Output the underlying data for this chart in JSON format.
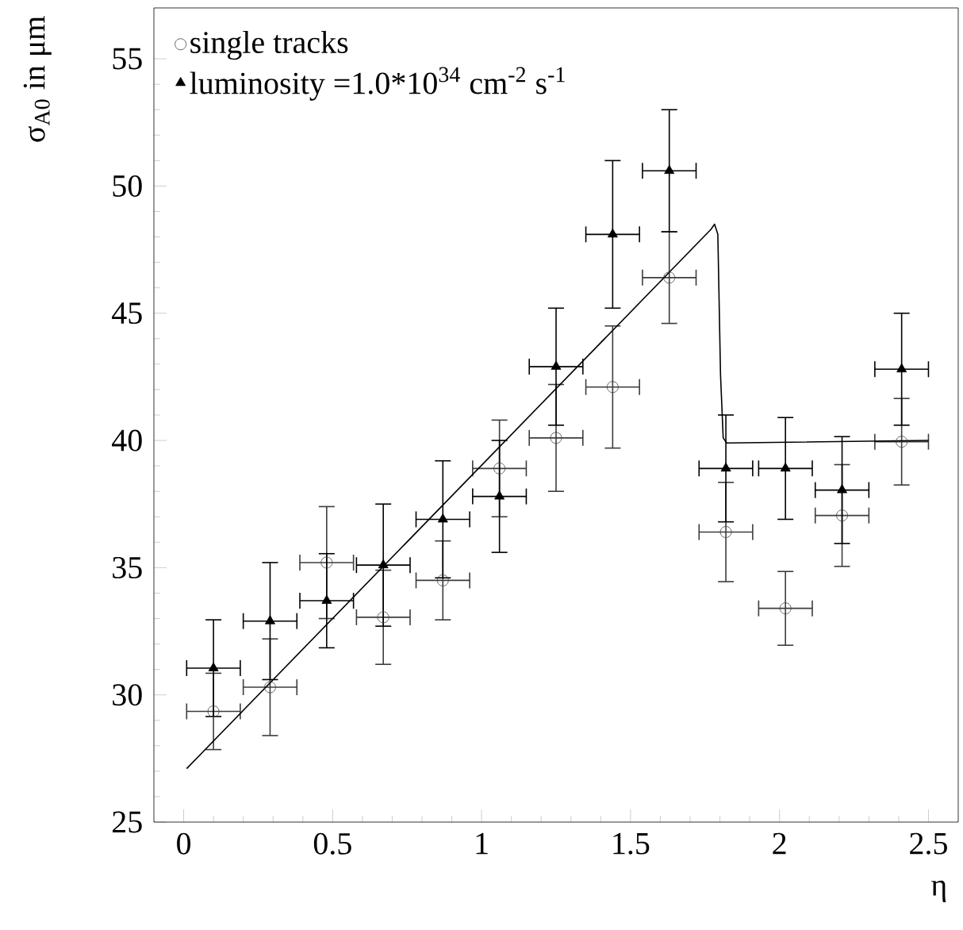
{
  "chart_data": {
    "type": "scatter",
    "xlabel": "η",
    "ylabel": "σ$_{A0}$ in μm",
    "xlim": [
      -0.1,
      2.6
    ],
    "ylim": [
      25,
      57
    ],
    "xticks": [
      0,
      0.5,
      1,
      1.5,
      2,
      2.5
    ],
    "yticks": [
      25,
      30,
      35,
      40,
      45,
      50,
      55
    ],
    "grid": false,
    "legend": "top left",
    "series": [
      {
        "name": "single tracks",
        "color": "#3c3c3c",
        "marker": "circle",
        "x": [
          0.1,
          0.29,
          0.48,
          0.67,
          0.87,
          1.06,
          1.25,
          1.44,
          1.63,
          1.82,
          2.02,
          2.21,
          2.41
        ],
        "values": [
          29.35,
          30.3,
          35.2,
          33.05,
          34.5,
          38.9,
          40.1,
          42.1,
          46.4,
          36.4,
          33.4,
          37.05,
          39.95
        ],
        "errors": [
          1.5,
          1.9,
          2.2,
          1.85,
          1.55,
          1.9,
          2.1,
          2.4,
          1.8,
          1.95,
          1.45,
          2.0,
          1.7
        ],
        "xerrors": [
          0.09,
          0.09,
          0.09,
          0.09,
          0.09,
          0.09,
          0.09,
          0.09,
          0.09,
          0.09,
          0.09,
          0.09,
          0.09
        ]
      },
      {
        "name": "luminosity =1.0*10$^{34}$ cm$^{-2}$ s$^{-1}$",
        "color": "#000000",
        "marker": "triangle",
        "x": [
          0.1,
          0.29,
          0.48,
          0.67,
          0.87,
          1.06,
          1.25,
          1.44,
          1.63,
          1.82,
          2.02,
          2.21,
          2.41
        ],
        "values": [
          31.05,
          32.9,
          33.7,
          35.1,
          36.9,
          37.8,
          42.9,
          48.1,
          50.6,
          38.9,
          38.9,
          38.05,
          42.8
        ],
        "errors": [
          1.9,
          2.3,
          1.85,
          2.4,
          2.3,
          2.2,
          2.3,
          2.9,
          2.4,
          2.1,
          2.0,
          2.1,
          2.2
        ],
        "xerrors": [
          0.09,
          0.09,
          0.09,
          0.09,
          0.09,
          0.09,
          0.09,
          0.09,
          0.09,
          0.09,
          0.09,
          0.09,
          0.09
        ]
      },
      {
        "type": "line",
        "color": "#000000",
        "marker": "none",
        "x": [
          0.01,
          1.77,
          1.782,
          1.793,
          1.802,
          1.811,
          1.823,
          2.5
        ],
        "values": [
          27.1,
          48.3,
          48.5,
          48.1,
          42.6,
          40.1,
          39.9,
          40.0
        ]
      }
    ]
  }
}
